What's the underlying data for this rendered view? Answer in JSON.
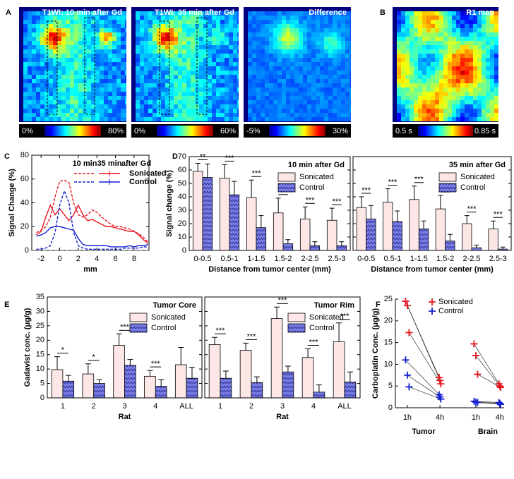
{
  "panel_labels": [
    "A",
    "B",
    "C",
    "D",
    "E",
    "F"
  ],
  "images": [
    {
      "title": "T1WI: 10 min after Gd",
      "cbar_min": "0%",
      "cbar_max": "80%"
    },
    {
      "title": "T1WI: 35 min after Gd",
      "cbar_min": "0%",
      "cbar_max": "60%"
    },
    {
      "title": "Difference",
      "cbar_min": "-5%",
      "cbar_max": "30%"
    },
    {
      "title": "R1 map",
      "cbar_min": "0.5 s",
      "cbar_max": "0.85 s"
    }
  ],
  "chart_data": [
    {
      "type": "line",
      "xlabel": "mm",
      "ylabel": "Signal Change (%)",
      "legend_headers": [
        "10 min",
        "35 min",
        "after Gd"
      ],
      "line_styles": [
        "dashed",
        "solid"
      ],
      "xlim": [
        -3,
        9.6
      ],
      "xticks": [
        -2,
        0,
        2,
        4,
        6,
        8
      ],
      "ylim": [
        0,
        80
      ],
      "yticks": [
        0,
        20,
        40,
        60,
        80
      ],
      "hline": 0,
      "x": [
        -2.5,
        -2,
        -1.5,
        -1,
        -0.5,
        0,
        0.5,
        1,
        1.5,
        2,
        2.5,
        3,
        3.5,
        4,
        4.5,
        5,
        5.5,
        6,
        6.5,
        7,
        7.5,
        8,
        8.5,
        9,
        9.5
      ],
      "series": [
        {
          "name": "Sonicated",
          "color": "#e8141c",
          "times": [
            {
              "values": [
                15,
                17,
                20,
                28,
                45,
                58,
                59,
                57,
                40,
                30,
                28,
                30,
                34,
                32,
                28,
                25,
                22,
                20,
                20,
                19,
                18,
                16,
                14,
                11,
                7
              ]
            },
            {
              "values": [
                13,
                16,
                28,
                38,
                30,
                35,
                30,
                25,
                30,
                38,
                30,
                25,
                26,
                24,
                22,
                20,
                20,
                19,
                18,
                17,
                16,
                16,
                13,
                9,
                6
              ]
            }
          ]
        },
        {
          "name": "Control",
          "color": "#1420d0",
          "times": [
            {
              "values": [
                1,
                1,
                2,
                4,
                15,
                38,
                50,
                40,
                15,
                4,
                2,
                1,
                1,
                1,
                1,
                1,
                1,
                1,
                1,
                2,
                2,
                2,
                2,
                3,
                3
              ]
            },
            {
              "values": [
                12,
                13,
                15,
                19,
                20,
                20,
                19,
                18,
                17,
                10,
                5,
                4,
                4,
                4,
                4,
                4,
                3,
                3,
                3,
                3,
                4,
                3,
                4,
                4,
                5
              ]
            }
          ]
        }
      ]
    },
    {
      "type": "bar",
      "title": "10 min after Gd",
      "xlabel": "Distance from tumor center (mm)",
      "ylabel": "Signal change (%)",
      "categories": [
        "0-0.5",
        "0.5-1",
        "1-1.5",
        "1.5-2",
        "2-2.5",
        "2.5-3"
      ],
      "ylim": [
        0,
        70
      ],
      "yticks": [
        0,
        10,
        20,
        30,
        40,
        50,
        60,
        70
      ],
      "significance": [
        "**",
        "***",
        "***",
        "***",
        "***",
        "***"
      ],
      "series": [
        {
          "name": "Sonicated",
          "color": "#fde6e6",
          "values": [
            59,
            54,
            39.5,
            28,
            23.5,
            22.5
          ],
          "errors": [
            6,
            10,
            13,
            11,
            9,
            9
          ]
        },
        {
          "name": "Control",
          "color": "#7a7ee6",
          "hatch": true,
          "values": [
            54.5,
            41.5,
            17,
            5,
            3.5,
            3.5
          ],
          "errors": [
            10,
            10,
            9,
            3,
            3,
            3
          ]
        }
      ]
    },
    {
      "type": "bar",
      "title": "35 min after Gd",
      "xlabel": "Distance from tumor center (mm)",
      "ytick_labels": false,
      "categories": [
        "0-0.5",
        "0.5-1",
        "1-1.5",
        "1.5-2",
        "2-2.5",
        "2.5-3"
      ],
      "ylim": [
        0,
        70
      ],
      "yticks": [
        0,
        10,
        20,
        30,
        40,
        50,
        60,
        70
      ],
      "significance": [
        "***",
        "***",
        "***",
        "***",
        "***",
        "***"
      ],
      "series": [
        {
          "name": "Sonicated",
          "color": "#fde6e6",
          "values": [
            32,
            36,
            38,
            31,
            20,
            16
          ],
          "errors": [
            8,
            10,
            10,
            10,
            6,
            6
          ]
        },
        {
          "name": "Control",
          "color": "#7a7ee6",
          "hatch": true,
          "values": [
            23.5,
            21.5,
            16,
            7,
            2,
            1
          ],
          "errors": [
            10,
            8,
            6,
            5,
            2,
            1.5
          ]
        }
      ]
    },
    {
      "type": "bar",
      "title": "Tumor Core",
      "xlabel": "Rat",
      "ylabel": "Gadavist conc. (μg/g)",
      "categories": [
        "1",
        "2",
        "3",
        "4",
        "ALL"
      ],
      "ylim": [
        0,
        35
      ],
      "yticks": [
        0,
        5,
        10,
        15,
        20,
        25,
        30,
        35
      ],
      "significance": [
        "*",
        "*",
        "***",
        "***",
        null
      ],
      "series": [
        {
          "name": "Sonicated",
          "color": "#fde6e6",
          "values": [
            9.8,
            8.3,
            18.2,
            7.5,
            11.5
          ],
          "errors": [
            4.5,
            3.5,
            4,
            2,
            6
          ]
        },
        {
          "name": "Control",
          "color": "#7a7ee6",
          "hatch": true,
          "values": [
            5.8,
            5,
            11.3,
            4,
            6.8
          ],
          "errors": [
            2,
            1.3,
            2,
            2.3,
            3.8
          ]
        }
      ]
    },
    {
      "type": "bar",
      "title": "Tumor Rim",
      "xlabel": "Rat",
      "ytick_labels": false,
      "categories": [
        "1",
        "2",
        "3",
        "4",
        "ALL"
      ],
      "ylim": [
        0,
        35
      ],
      "yticks": [
        0,
        5,
        10,
        15,
        20,
        25,
        30,
        35
      ],
      "significance": [
        "***",
        "***",
        "***",
        "***",
        "***"
      ],
      "series": [
        {
          "name": "Sonicated",
          "color": "#fde6e6",
          "values": [
            18.5,
            16.5,
            27.5,
            14,
            19.5
          ],
          "errors": [
            2.5,
            2.5,
            4,
            3,
            6.5
          ]
        },
        {
          "name": "Control",
          "color": "#7a7ee6",
          "hatch": true,
          "values": [
            6.8,
            5.3,
            9,
            2,
            5.5
          ],
          "errors": [
            2.5,
            2,
            2,
            2.5,
            3.5
          ]
        }
      ]
    },
    {
      "type": "scatter",
      "ylabel": "Carboplatin Conc. (μg/g)",
      "categories": [
        "1h",
        "4h",
        "1h",
        "4h"
      ],
      "groups": [
        "Tumor",
        "Brain"
      ],
      "ylim": [
        0,
        25
      ],
      "yticks": [
        0,
        5,
        10,
        15,
        20,
        25
      ],
      "series": [
        {
          "name": "Sonicated",
          "color": "#e8141c",
          "values": [
            [
              24.5,
              23.5,
              17.3
            ],
            [
              7,
              6.3,
              5.5
            ],
            [
              14.7,
              12,
              7.7
            ],
            [
              5.5,
              5,
              4.7
            ]
          ]
        },
        {
          "name": "Control",
          "color": "#1420d0",
          "values": [
            [
              11,
              7.5,
              4.8
            ],
            [
              3,
              2.5,
              2
            ],
            [
              1.5,
              1.3,
              1.2
            ],
            [
              1.2,
              1,
              0.8
            ]
          ]
        }
      ]
    }
  ]
}
